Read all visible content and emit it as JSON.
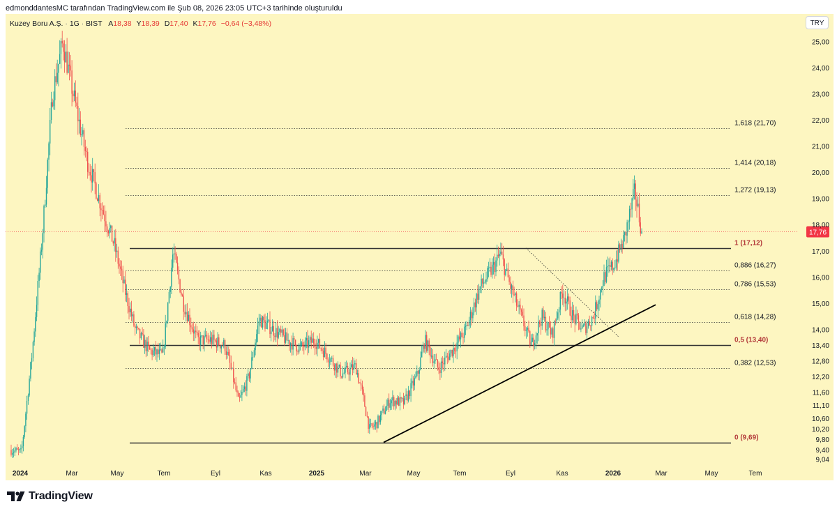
{
  "header": {
    "caption": "edmonddantesMC tarafından TradingView.com ile Şub 08, 2026 23:05 UTC+3 tarihinde oluşturuldu"
  },
  "symbol": {
    "name": "Kuzey Boru A.Ş.",
    "interval": "1G",
    "exchange": "BIST",
    "open_label": "A",
    "open": "18,38",
    "high_label": "Y",
    "high": "18,39",
    "low_label": "D",
    "low": "17,40",
    "close_label": "K",
    "close": "17,76",
    "change": "−0,64 (−3,48%)"
  },
  "currency": "TRY",
  "colors": {
    "background": "#fdf6c1",
    "up": "#26a69a",
    "down": "#ef5350",
    "fib_line": "#333333",
    "last_price": "#f23645"
  },
  "chart_data": {
    "type": "candlestick",
    "y_axis_labels": [
      "25,00",
      "24,00",
      "23,00",
      "22,00",
      "21,00",
      "20,00",
      "19,00",
      "18,00",
      "17,00",
      "16,00",
      "15,00",
      "14,00",
      "13,40",
      "12,80",
      "12,20",
      "11,60",
      "11,10",
      "10,60",
      "10,20",
      "9,80",
      "9,40",
      "9,04"
    ],
    "x_axis_labels": [
      "2024",
      "Mar",
      "May",
      "Tem",
      "Eyl",
      "Kas",
      "2025",
      "Mar",
      "May",
      "Tem",
      "Eyl",
      "Kas",
      "2026",
      "Mar",
      "May",
      "Tem"
    ],
    "last_price": "17,76",
    "fibonacci": [
      {
        "label": "1,618 (21,70)",
        "level": 1.618,
        "value": 21.7
      },
      {
        "label": "1,414 (20,18)",
        "level": 1.414,
        "value": 20.18
      },
      {
        "label": "1,272 (19,13)",
        "level": 1.272,
        "value": 19.13
      },
      {
        "label": "1 (17,12)",
        "level": 1.0,
        "value": 17.12
      },
      {
        "label": "0,886 (16,27)",
        "level": 0.886,
        "value": 16.27
      },
      {
        "label": "0,786 (15,53)",
        "level": 0.786,
        "value": 15.53
      },
      {
        "label": "0,618 (14,28)",
        "level": 0.618,
        "value": 14.28
      },
      {
        "label": "0,5 (13,40)",
        "level": 0.5,
        "value": 13.4
      },
      {
        "label": "0,382 (12,53)",
        "level": 0.382,
        "value": 12.53
      },
      {
        "label": "0 (9,69)",
        "level": 0.0,
        "value": 9.69
      }
    ],
    "price_path": [
      [
        0.0,
        9.4
      ],
      [
        0.015,
        9.3
      ],
      [
        0.03,
        13.0
      ],
      [
        0.045,
        17.5
      ],
      [
        0.06,
        23.0
      ],
      [
        0.075,
        25.0
      ],
      [
        0.09,
        23.0
      ],
      [
        0.11,
        20.5
      ],
      [
        0.13,
        18.8
      ],
      [
        0.15,
        17.2
      ],
      [
        0.165,
        15.5
      ],
      [
        0.18,
        14.0
      ],
      [
        0.2,
        13.2
      ],
      [
        0.22,
        13.0
      ],
      [
        0.235,
        17.0
      ],
      [
        0.25,
        15.0
      ],
      [
        0.27,
        13.6
      ],
      [
        0.29,
        13.6
      ],
      [
        0.31,
        13.4
      ],
      [
        0.32,
        12.4
      ],
      [
        0.33,
        11.2
      ],
      [
        0.345,
        12.2
      ],
      [
        0.36,
        14.4
      ],
      [
        0.38,
        14.0
      ],
      [
        0.4,
        13.6
      ],
      [
        0.42,
        13.3
      ],
      [
        0.44,
        13.6
      ],
      [
        0.46,
        13.0
      ],
      [
        0.48,
        12.3
      ],
      [
        0.5,
        12.6
      ],
      [
        0.51,
        11.5
      ],
      [
        0.52,
        10.2
      ],
      [
        0.53,
        10.4
      ],
      [
        0.55,
        11.3
      ],
      [
        0.57,
        11.2
      ],
      [
        0.59,
        12.3
      ],
      [
        0.6,
        13.6
      ],
      [
        0.62,
        12.5
      ],
      [
        0.64,
        13.2
      ],
      [
        0.66,
        14.0
      ],
      [
        0.68,
        15.6
      ],
      [
        0.7,
        16.4
      ],
      [
        0.71,
        16.9
      ],
      [
        0.725,
        15.6
      ],
      [
        0.74,
        14.5
      ],
      [
        0.755,
        13.4
      ],
      [
        0.77,
        14.5
      ],
      [
        0.785,
        13.8
      ],
      [
        0.8,
        15.5
      ],
      [
        0.815,
        14.5
      ],
      [
        0.83,
        14.0
      ],
      [
        0.845,
        14.5
      ],
      [
        0.86,
        16.0
      ],
      [
        0.875,
        16.5
      ],
      [
        0.89,
        17.5
      ],
      [
        0.905,
        19.3
      ],
      [
        0.915,
        17.76
      ]
    ]
  }
}
